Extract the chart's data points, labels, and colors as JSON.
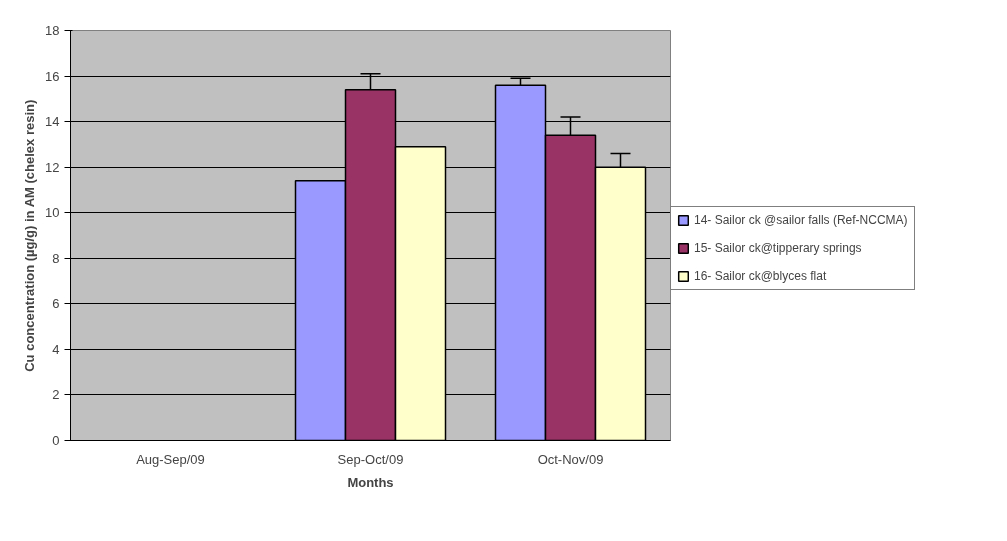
{
  "chart_data": {
    "type": "bar",
    "xlabel": "Months",
    "ylabel": "Cu concentration (µg/g) in AM (chelex resin)",
    "categories": [
      "Aug-Sep/09",
      "Sep-Oct/09",
      "Oct-Nov/09"
    ],
    "series": [
      {
        "name": "14- Sailor ck @sailor falls (Ref-NCCMA)",
        "color": "#9999ff",
        "values": [
          null,
          11.4,
          15.6
        ],
        "errors": [
          null,
          null,
          0.3
        ]
      },
      {
        "name": "15- Sailor ck@tipperary springs",
        "color": "#993366",
        "values": [
          null,
          15.4,
          13.4
        ],
        "errors": [
          null,
          0.7,
          0.8
        ]
      },
      {
        "name": "16- Sailor ck@blyces flat",
        "color": "#ffffcc",
        "values": [
          null,
          12.9,
          12.0
        ],
        "errors": [
          null,
          null,
          0.6
        ]
      }
    ],
    "ylim": [
      0,
      18
    ],
    "yticks": [
      0,
      2,
      4,
      6,
      8,
      10,
      12,
      14,
      16,
      18
    ],
    "grid": "y",
    "legend": "right"
  }
}
